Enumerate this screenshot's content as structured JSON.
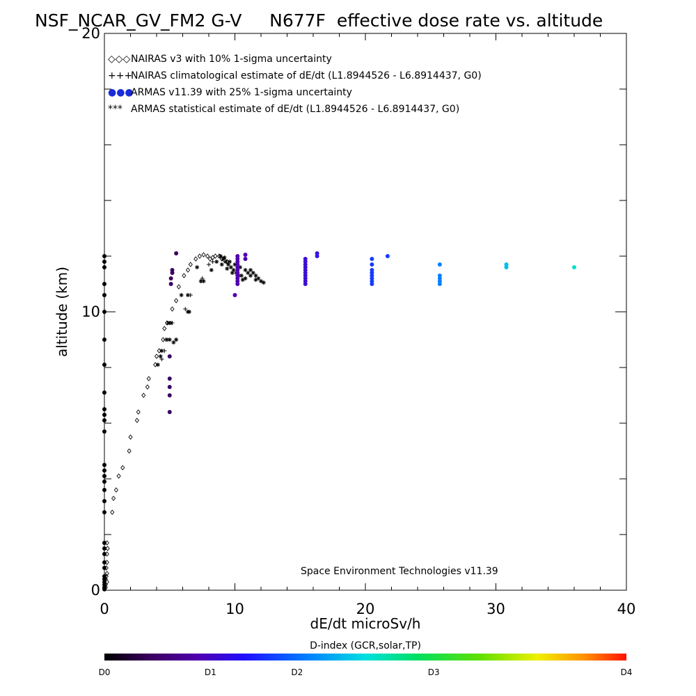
{
  "chart_data": {
    "type": "scatter",
    "title": "NSF_NCAR_GV_FM2 G-V     N677F  effective dose rate vs. altitude",
    "xlabel": "dE/dt microSv/h",
    "ylabel": "altitude (km)",
    "xlim": [
      0,
      40
    ],
    "ylim": [
      0,
      20
    ],
    "x_tick_labels": [
      "0",
      "10",
      "20",
      "30",
      "40"
    ],
    "y_tick_labels": [
      "0",
      "10",
      "20"
    ],
    "legend_position": "top-left",
    "legend": [
      {
        "marker": "◇◇◇",
        "text": "NAIRAS v3 with 10% 1-sigma uncertainty"
      },
      {
        "marker": "+++",
        "text": "NAIRAS climatological estimate of dE/dt (L1.8944526 - L6.8914437, G0)"
      },
      {
        "marker": "●●●",
        "text": "ARMAS v11.39 with 25% 1-sigma uncertainty"
      },
      {
        "marker": "***",
        "text": "ARMAS statistical estimate of dE/dt (L1.8944526 - L6.8914437, G0)"
      }
    ],
    "credit": "Space Environment Technologies v11.39",
    "colorbar": {
      "title": "D-index (GCR,solar,TP)",
      "labels": [
        {
          "text": "D0",
          "value": 0
        },
        {
          "text": "D1",
          "value": 0.25
        },
        {
          "text": "D2",
          "value": 0.5
        },
        {
          "text": "D3",
          "value": 1.0
        },
        {
          "text": "D4",
          "value": 2.0
        }
      ],
      "max_value": 2.0
    },
    "series": [
      {
        "style": "diamond",
        "points": [
          [
            0,
            0.05
          ],
          [
            0.1,
            0.1
          ],
          [
            0.1,
            0.2
          ],
          [
            0.2,
            0.3
          ],
          [
            0.1,
            0.4
          ],
          [
            0.15,
            0.5
          ],
          [
            0.2,
            0.6
          ],
          [
            0.15,
            0.8
          ],
          [
            0.2,
            1.0
          ],
          [
            0.2,
            1.3
          ],
          [
            0.25,
            1.5
          ],
          [
            0.2,
            1.7
          ],
          [
            0.6,
            2.8
          ],
          [
            0.7,
            3.3
          ],
          [
            0.9,
            3.6
          ],
          [
            1.1,
            4.1
          ],
          [
            1.4,
            4.4
          ],
          [
            1.9,
            5.0
          ],
          [
            2.0,
            5.5
          ],
          [
            2.5,
            6.1
          ],
          [
            2.6,
            6.4
          ],
          [
            3.0,
            7.0
          ],
          [
            3.3,
            7.3
          ],
          [
            3.4,
            7.6
          ],
          [
            3.9,
            8.1
          ],
          [
            4.0,
            8.4
          ],
          [
            4.2,
            8.6
          ],
          [
            4.5,
            9.0
          ],
          [
            4.6,
            9.4
          ],
          [
            4.8,
            9.6
          ],
          [
            5.2,
            10.1
          ],
          [
            5.5,
            10.4
          ],
          [
            5.7,
            10.9
          ],
          [
            6.1,
            11.3
          ],
          [
            6.4,
            11.5
          ],
          [
            6.6,
            11.7
          ],
          [
            7.0,
            11.9
          ],
          [
            7.3,
            12.0
          ],
          [
            7.6,
            12.05
          ],
          [
            7.9,
            12.0
          ],
          [
            8.1,
            11.9
          ],
          [
            8.3,
            11.95
          ],
          [
            8.5,
            12.0
          ],
          [
            8.8,
            12.0
          ],
          [
            9.0,
            11.9
          ],
          [
            9.2,
            11.85
          ],
          [
            9.4,
            11.8
          ]
        ]
      },
      {
        "style": "plus",
        "points": [
          [
            4.4,
            8.3
          ],
          [
            4.6,
            8.6
          ],
          [
            4.7,
            9.0
          ],
          [
            5.0,
            9.6
          ],
          [
            5.2,
            9.6
          ],
          [
            5.5,
            9.0
          ],
          [
            6.2,
            10.1
          ],
          [
            6.6,
            10.6
          ],
          [
            7.4,
            11.1
          ],
          [
            7.5,
            11.2
          ],
          [
            8.0,
            11.7
          ],
          [
            8.3,
            11.8
          ]
        ]
      },
      {
        "style": "asterisk",
        "points": [
          [
            4.1,
            8.1
          ],
          [
            4.3,
            8.4
          ],
          [
            4.4,
            8.6
          ],
          [
            4.8,
            9.0
          ],
          [
            5.0,
            9.0
          ],
          [
            5.3,
            8.9
          ],
          [
            5.5,
            9.0
          ],
          [
            4.9,
            9.6
          ],
          [
            5.1,
            9.6
          ],
          [
            6.4,
            10.0
          ],
          [
            6.5,
            10.0
          ],
          [
            5.9,
            10.6
          ],
          [
            6.4,
            10.6
          ],
          [
            7.4,
            11.1
          ],
          [
            7.6,
            11.1
          ],
          [
            7.1,
            11.6
          ],
          [
            8.2,
            11.5
          ],
          [
            8.6,
            11.8
          ],
          [
            8.9,
            12.0
          ],
          [
            9.1,
            11.9
          ],
          [
            9.3,
            11.8
          ],
          [
            9.5,
            11.7
          ],
          [
            9.7,
            11.6
          ],
          [
            9.9,
            11.5
          ],
          [
            10.1,
            11.4
          ],
          [
            10.3,
            11.3
          ],
          [
            10.5,
            11.3
          ],
          [
            10.6,
            11.15
          ],
          [
            10.8,
            11.2
          ],
          [
            11.0,
            11.4
          ],
          [
            11.2,
            11.5
          ],
          [
            11.4,
            11.4
          ],
          [
            11.6,
            11.3
          ],
          [
            11.8,
            11.2
          ],
          [
            12.0,
            11.1
          ],
          [
            12.2,
            11.05
          ],
          [
            9.2,
            11.95
          ],
          [
            9.6,
            11.8
          ],
          [
            10.0,
            11.7
          ],
          [
            10.4,
            11.6
          ],
          [
            10.8,
            11.5
          ],
          [
            11.2,
            11.3
          ],
          [
            11.6,
            11.15
          ],
          [
            9.0,
            11.7
          ],
          [
            9.4,
            11.55
          ],
          [
            9.8,
            11.4
          ]
        ]
      },
      {
        "style": "dot",
        "points": [
          [
            0,
            0.03,
            0
          ],
          [
            0,
            0.1,
            0
          ],
          [
            0,
            0.2,
            0
          ],
          [
            0,
            0.3,
            0
          ],
          [
            0,
            0.4,
            0
          ],
          [
            0,
            0.5,
            0
          ],
          [
            0,
            0.8,
            0
          ],
          [
            0,
            1.0,
            0
          ],
          [
            0,
            1.3,
            0
          ],
          [
            0,
            1.5,
            0
          ],
          [
            0,
            1.7,
            0
          ],
          [
            0,
            2.8,
            0
          ],
          [
            0,
            3.2,
            0
          ],
          [
            0,
            3.6,
            0
          ],
          [
            0,
            3.9,
            0
          ],
          [
            0,
            4.1,
            0
          ],
          [
            0,
            4.3,
            0
          ],
          [
            0,
            4.5,
            0
          ],
          [
            0,
            5.7,
            0
          ],
          [
            0,
            6.1,
            0
          ],
          [
            0,
            6.3,
            0
          ],
          [
            0,
            6.5,
            0
          ],
          [
            0,
            7.1,
            0
          ],
          [
            0,
            8.1,
            0
          ],
          [
            0,
            9.0,
            0
          ],
          [
            0,
            10.0,
            0
          ],
          [
            0,
            10.6,
            0
          ],
          [
            0,
            11.0,
            0
          ],
          [
            0,
            11.6,
            0
          ],
          [
            0,
            11.8,
            0
          ],
          [
            0,
            12.0,
            0
          ],
          [
            5.0,
            6.4,
            0.12
          ],
          [
            5.0,
            7.0,
            0.12
          ],
          [
            5.0,
            7.3,
            0.12
          ],
          [
            5.0,
            7.6,
            0.12
          ],
          [
            5.0,
            8.4,
            0.12
          ],
          [
            5.1,
            11.0,
            0.12
          ],
          [
            5.1,
            11.2,
            0.12
          ],
          [
            5.2,
            11.4,
            0.12
          ],
          [
            5.2,
            11.5,
            0.12
          ],
          [
            5.5,
            12.1,
            0.12
          ],
          [
            10.0,
            10.6,
            0.2
          ],
          [
            10.2,
            11.0,
            0.2
          ],
          [
            10.2,
            11.1,
            0.2
          ],
          [
            10.2,
            11.2,
            0.2
          ],
          [
            10.2,
            11.3,
            0.2
          ],
          [
            10.2,
            11.4,
            0.2
          ],
          [
            10.2,
            11.5,
            0.2
          ],
          [
            10.2,
            11.6,
            0.2
          ],
          [
            10.2,
            11.7,
            0.2
          ],
          [
            10.2,
            11.8,
            0.2
          ],
          [
            10.2,
            11.9,
            0.2
          ],
          [
            10.2,
            12.0,
            0.2
          ],
          [
            10.8,
            11.9,
            0.2
          ],
          [
            10.8,
            12.05,
            0.2
          ],
          [
            15.4,
            11.0,
            0.3
          ],
          [
            15.4,
            11.1,
            0.3
          ],
          [
            15.4,
            11.2,
            0.3
          ],
          [
            15.4,
            11.3,
            0.3
          ],
          [
            15.4,
            11.4,
            0.3
          ],
          [
            15.4,
            11.5,
            0.3
          ],
          [
            15.4,
            11.6,
            0.3
          ],
          [
            15.4,
            11.7,
            0.3
          ],
          [
            15.4,
            11.8,
            0.3
          ],
          [
            15.4,
            11.9,
            0.3
          ],
          [
            16.3,
            12.0,
            0.35
          ],
          [
            16.3,
            12.1,
            0.35
          ],
          [
            20.5,
            11.0,
            0.5
          ],
          [
            20.5,
            11.1,
            0.5
          ],
          [
            20.5,
            11.2,
            0.5
          ],
          [
            20.5,
            11.3,
            0.5
          ],
          [
            20.5,
            11.4,
            0.5
          ],
          [
            20.5,
            11.5,
            0.5
          ],
          [
            20.5,
            11.7,
            0.5
          ],
          [
            20.5,
            11.9,
            0.5
          ],
          [
            21.7,
            12.0,
            0.5
          ],
          [
            25.7,
            11.0,
            0.65
          ],
          [
            25.7,
            11.1,
            0.65
          ],
          [
            25.7,
            11.2,
            0.65
          ],
          [
            25.7,
            11.3,
            0.65
          ],
          [
            25.7,
            11.7,
            0.65
          ],
          [
            30.8,
            11.6,
            0.8
          ],
          [
            30.8,
            11.7,
            0.8
          ],
          [
            36.0,
            11.6,
            0.95
          ]
        ]
      }
    ]
  }
}
